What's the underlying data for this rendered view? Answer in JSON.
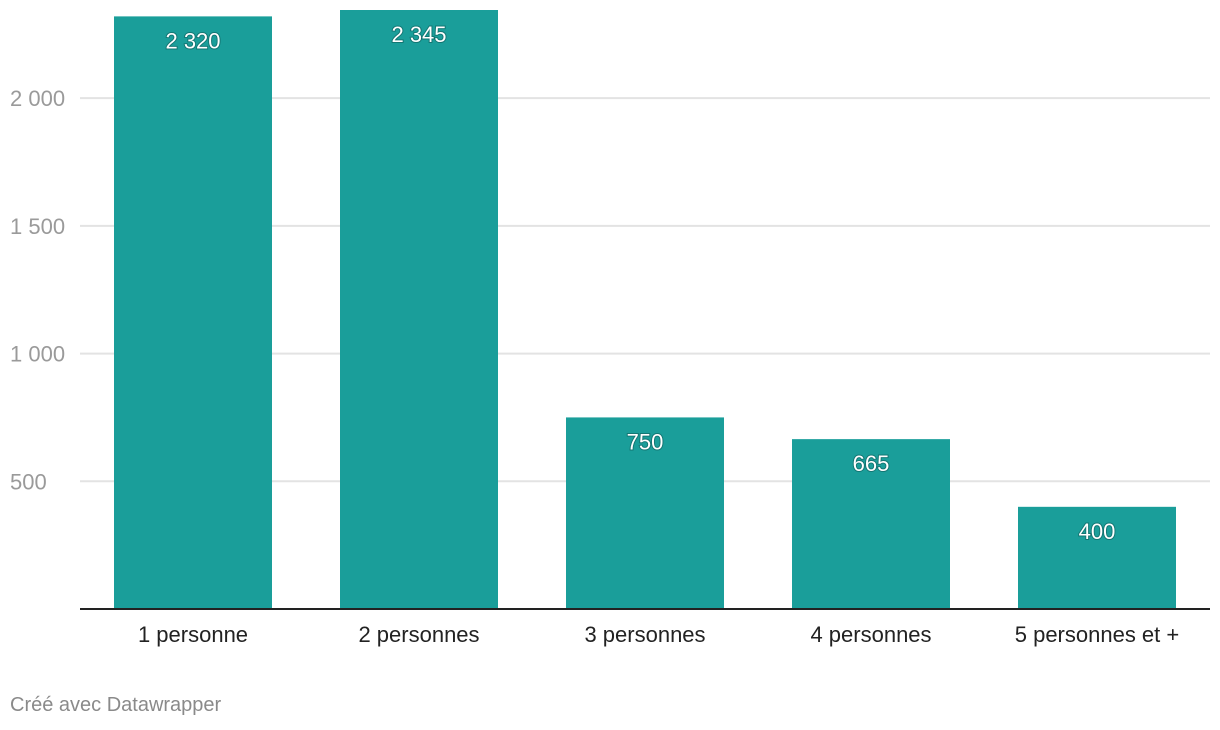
{
  "chart_data": {
    "type": "bar",
    "categories": [
      "1 personne",
      "2 personnes",
      "3 personnes",
      "4 personnes",
      "5 personnes et +"
    ],
    "values": [
      2320,
      2345,
      750,
      665,
      400
    ],
    "value_labels": [
      "2 320",
      "2 345",
      "750",
      "665",
      "400"
    ],
    "title": "",
    "xlabel": "",
    "ylabel": "",
    "ylim": [
      0,
      2345
    ],
    "yticks": [
      500,
      1000,
      1500,
      2000
    ],
    "ytick_labels": [
      "500",
      "1 000",
      "1 500",
      "2 000"
    ],
    "grid": true,
    "colors": {
      "bar": "#1a9e9a",
      "grid": "#e3e3e3",
      "axis": "#222222"
    }
  },
  "footer": {
    "credit": "Créé avec Datawrapper"
  }
}
